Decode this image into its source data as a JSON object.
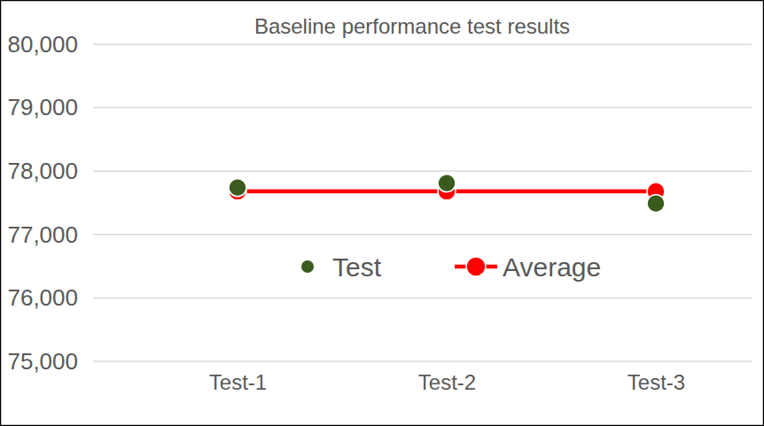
{
  "chart_data": {
    "type": "line",
    "title": "Baseline performance test results",
    "categories": [
      "Test-1",
      "Test-2",
      "Test-3"
    ],
    "series": [
      {
        "name": "Test",
        "color": "#3a5a1e",
        "type": "scatter",
        "marker": "circle",
        "values": [
          77740,
          77810,
          77490
        ]
      },
      {
        "name": "Average",
        "color": "#ff0000",
        "type": "line",
        "marker": "circle",
        "values": [
          77680,
          77680,
          77680
        ]
      }
    ],
    "ylim": [
      75000,
      80000
    ],
    "yticks": [
      {
        "value": 75000,
        "label": "75,000"
      },
      {
        "value": 76000,
        "label": "76,000"
      },
      {
        "value": 77000,
        "label": "77,000"
      },
      {
        "value": 78000,
        "label": "78,000"
      },
      {
        "value": 79000,
        "label": "79,000"
      },
      {
        "value": 80000,
        "label": "80,000"
      }
    ],
    "grid": true,
    "legend": "center"
  }
}
